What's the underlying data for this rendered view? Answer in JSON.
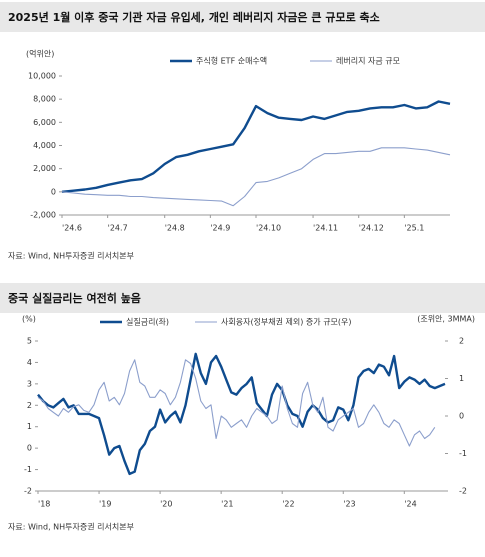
{
  "chart_data": [
    {
      "type": "line",
      "title": "2025년 1월 이후 중국 기관 자금 유입세, 개인 레버리지 자금은 큰 규모로 축소",
      "y_label": "(억위안)",
      "source": "자료: Wind, NH투자증권 리서치본부",
      "categories": [
        "'24.6",
        null,
        null,
        null,
        "'24.7",
        null,
        null,
        null,
        null,
        "'24.8",
        null,
        null,
        null,
        "'24.9",
        null,
        null,
        null,
        "'24.10",
        null,
        null,
        null,
        null,
        "'24.11",
        null,
        null,
        null,
        "'24.12",
        null,
        null,
        null,
        "'25.1",
        null,
        null,
        null,
        null
      ],
      "ylim": [
        -2000,
        10000
      ],
      "yticks": [
        {
          "value": -2000,
          "label": "-2,000"
        },
        0,
        {
          "value": 2000,
          "label": "2,000"
        },
        {
          "value": 4000,
          "label": "4,000"
        },
        {
          "value": 6000,
          "label": "6,000"
        },
        {
          "value": 8000,
          "label": "8,000"
        },
        {
          "value": 10000,
          "label": "10,000"
        }
      ],
      "series": [
        {
          "name": "주식형 ETF 순매수액",
          "color": "#0f4c8f",
          "values": [
            0,
            100,
            200,
            350,
            600,
            800,
            1000,
            1100,
            1600,
            2400,
            3000,
            3200,
            3500,
            3700,
            3900,
            4100,
            5500,
            7400,
            6800,
            6400,
            6300,
            6200,
            6500,
            6300,
            6600,
            6900,
            7000,
            7200,
            7300,
            7300,
            7500,
            7200,
            7300,
            7800,
            7600
          ]
        },
        {
          "name": "레버리지 자금 규모",
          "color": "#8c9fcc",
          "values": [
            0,
            -100,
            -200,
            -250,
            -300,
            -300,
            -400,
            -400,
            -500,
            -550,
            -600,
            -650,
            -700,
            -750,
            -800,
            -1200,
            -400,
            800,
            900,
            1200,
            1600,
            2000,
            2800,
            3300,
            3300,
            3400,
            3500,
            3500,
            3800,
            3800,
            3800,
            3700,
            3600,
            3400,
            3200
          ]
        }
      ]
    },
    {
      "type": "line",
      "title": "중국 실질금리는 여전히 높음",
      "y_label": "(%)",
      "y2_label": "(조위안, 3MMA)",
      "source": "자료: Wind, NH투자증권 리서치본부",
      "categories": [
        "'18",
        null,
        null,
        null,
        null,
        null,
        null,
        null,
        null,
        null,
        null,
        null,
        "'19",
        null,
        null,
        null,
        null,
        null,
        null,
        null,
        null,
        null,
        null,
        null,
        "'20",
        null,
        null,
        null,
        null,
        null,
        null,
        null,
        null,
        null,
        null,
        null,
        "'21",
        null,
        null,
        null,
        null,
        null,
        null,
        null,
        null,
        null,
        null,
        null,
        "'22",
        null,
        null,
        null,
        null,
        null,
        null,
        null,
        null,
        null,
        null,
        null,
        "'23",
        null,
        null,
        null,
        null,
        null,
        null,
        null,
        null,
        null,
        null,
        null,
        "'24",
        null,
        null,
        null,
        null,
        null,
        null,
        null,
        null
      ],
      "ylim": [
        -2,
        5
      ],
      "yticks": [
        -2,
        -1,
        0,
        1,
        2,
        3,
        4,
        5
      ],
      "y2lim": [
        -2,
        2
      ],
      "y2ticks": [
        -2,
        -1,
        0,
        1,
        2
      ],
      "series": [
        {
          "name": "실질금리(좌)",
          "color": "#0f4c8f",
          "values": [
            2.5,
            2.2,
            2.0,
            1.9,
            2.1,
            2.3,
            1.9,
            2.0,
            1.6,
            1.6,
            1.6,
            1.5,
            1.4,
            0.6,
            -0.3,
            0,
            0.1,
            -0.6,
            -1.2,
            -1.1,
            -0.1,
            0.2,
            0.8,
            1.0,
            1.8,
            1.2,
            1.5,
            1.7,
            1.2,
            2.0,
            3.2,
            4.4,
            3.5,
            3.0,
            4.0,
            4.3,
            3.8,
            3.2,
            2.6,
            2.5,
            2.8,
            3.0,
            3.3,
            2.1,
            1.8,
            1.5,
            2.5,
            3.0,
            2.7,
            2.0,
            1.6,
            1.5,
            1.0,
            1.7,
            2.0,
            1.8,
            1.4,
            1.2,
            1.3,
            1.9,
            1.8,
            1.3,
            2.0,
            3.3,
            3.6,
            3.7,
            3.5,
            3.9,
            3.8,
            3.4,
            4.3,
            2.8,
            3.1,
            3.3,
            3.2,
            3.0,
            3.2,
            2.9,
            2.8,
            2.9,
            3.0
          ]
        },
        {
          "name": "사회융자(정부채권 제외) 증가 규모(우)",
          "color": "#8c9fcc",
          "axis": "y2",
          "values": [
            0.5,
            0.4,
            0.2,
            0.1,
            0.0,
            0.2,
            0.1,
            0.25,
            0.3,
            0.15,
            0.1,
            0.3,
            0.7,
            0.9,
            0.4,
            0.5,
            0.3,
            0.6,
            1.2,
            1.5,
            0.9,
            0.8,
            0.5,
            0.5,
            0.7,
            0.6,
            0.3,
            0.5,
            0.9,
            1.5,
            1.4,
            1.0,
            0.4,
            0.2,
            0.3,
            -0.6,
            0.0,
            -0.1,
            -0.3,
            -0.2,
            -0.1,
            -0.3,
            0.0,
            0.2,
            0.1,
            0.0,
            -0.2,
            -0.1,
            0.8,
            0.2,
            -0.2,
            -0.3,
            0.6,
            0.9,
            0.3,
            0.1,
            0.5,
            -0.3,
            -0.4,
            -0.1,
            0.0,
            0.1,
            0.2,
            -0.3,
            -0.2,
            0.1,
            0.3,
            0.1,
            -0.2,
            -0.3,
            -0.1,
            -0.2,
            -0.5,
            -0.8,
            -0.5,
            -0.4,
            -0.6,
            -0.5,
            -0.3,
            null,
            null
          ]
        }
      ]
    }
  ]
}
